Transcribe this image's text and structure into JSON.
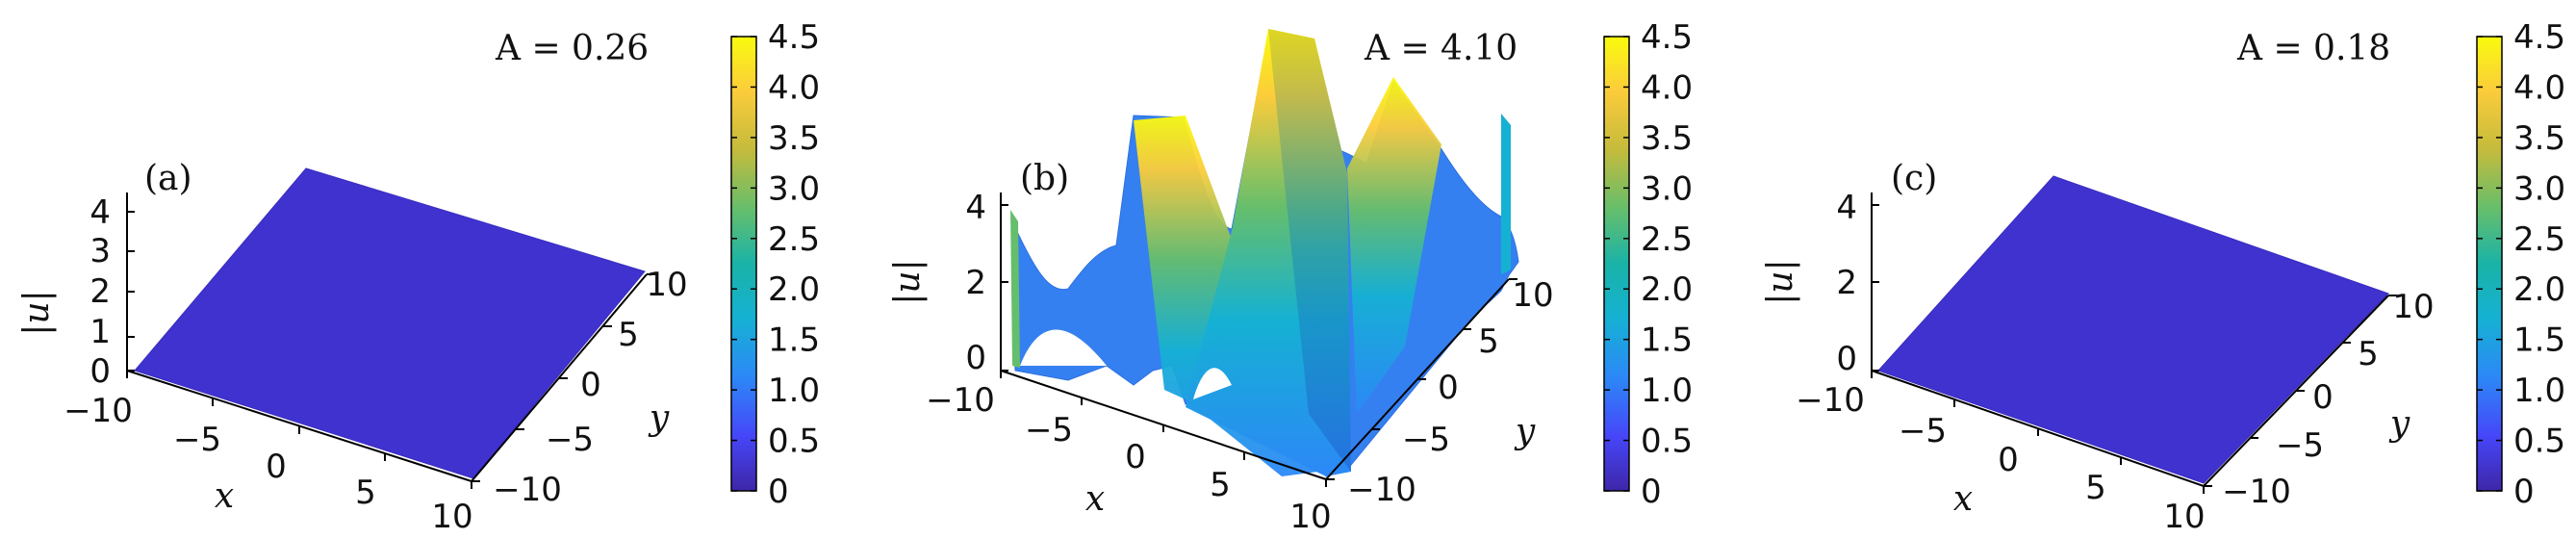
{
  "chart_data": [
    {
      "type": "surface",
      "panel_label": "(a)",
      "annotation": "A = 0.26",
      "surface_level": 0.26,
      "xlabel": "x",
      "ylabel": "y",
      "zlabel": "|u|",
      "xlim": [
        -10,
        10
      ],
      "ylim": [
        -10,
        10
      ],
      "zlim": [
        0,
        4.5
      ],
      "x_ticks": [
        "−10",
        "−5",
        "0",
        "5",
        "10"
      ],
      "y_ticks": [
        "−10",
        "−5",
        "0",
        "5",
        "10"
      ],
      "z_ticks": [
        "0",
        "1",
        "2",
        "3",
        "4"
      ],
      "colorbar": {
        "min": 0,
        "max": 4.5,
        "ticks": [
          "0",
          "0.5",
          "1.0",
          "1.5",
          "2.0",
          "2.5",
          "3.0",
          "3.5",
          "4.0",
          "4.5"
        ]
      }
    },
    {
      "type": "surface",
      "panel_label": "(b)",
      "annotation": "A = 4.10",
      "surface_level": 1.5,
      "peak": 4.1,
      "xlabel": "x",
      "ylabel": "y",
      "zlabel": "|u|",
      "xlim": [
        -10,
        10
      ],
      "ylim": [
        -10,
        10
      ],
      "zlim": [
        0,
        4.5
      ],
      "x_ticks": [
        "−10",
        "−5",
        "0",
        "5",
        "10"
      ],
      "y_ticks": [
        "−10",
        "−5",
        "0",
        "5",
        "10"
      ],
      "z_ticks": [
        "0",
        "2",
        "4"
      ],
      "colorbar": {
        "min": 0,
        "max": 4.5,
        "ticks": [
          "0",
          "0.5",
          "1.0",
          "1.5",
          "2.0",
          "2.5",
          "3.0",
          "3.5",
          "4.0",
          "4.5"
        ]
      }
    },
    {
      "type": "surface",
      "panel_label": "(c)",
      "annotation": "A = 0.18",
      "surface_level": 0.18,
      "xlabel": "x",
      "ylabel": "y",
      "zlabel": "|u|",
      "xlim": [
        -10,
        10
      ],
      "ylim": [
        -10,
        10
      ],
      "zlim": [
        0,
        4.5
      ],
      "x_ticks": [
        "−10",
        "−5",
        "0",
        "5",
        "10"
      ],
      "y_ticks": [
        "−10",
        "−5",
        "0",
        "5",
        "10"
      ],
      "z_ticks": [
        "0",
        "2",
        "4"
      ],
      "colorbar": {
        "min": 0,
        "max": 4.5,
        "ticks": [
          "0",
          "0.5",
          "1.0",
          "1.5",
          "2.0",
          "2.5",
          "3.0",
          "3.5",
          "4.0",
          "4.5"
        ]
      }
    }
  ],
  "colors": {
    "flat_surface": "#4032cf",
    "mid_surface": "#3580f0",
    "colormap_low": "#3e26a8",
    "colormap_mid": "#1ab3a7",
    "colormap_high": "#f9fb0e",
    "axis": "#000000"
  }
}
